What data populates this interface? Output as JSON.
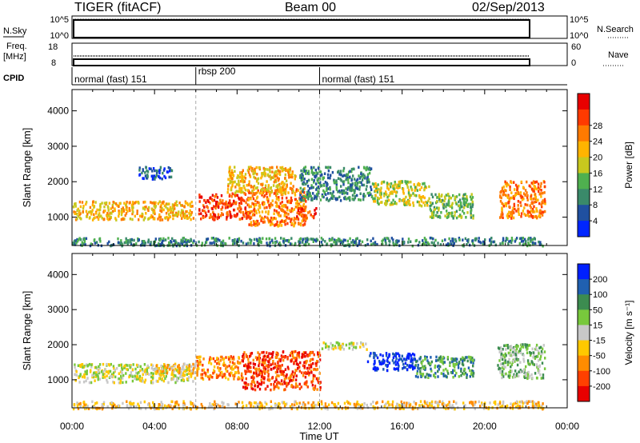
{
  "header": {
    "site": "TIGER (fitACF)",
    "beam": "Beam 00",
    "date": "02/Sep/2013"
  },
  "top_panels": {
    "nsky": {
      "label": "N.Sky",
      "ticks": [
        "10^5",
        "10^0"
      ],
      "right_label": "N.Search",
      "right_ticks": [
        "10^5",
        "10^0"
      ]
    },
    "freq": {
      "label_line1": "Freq.",
      "label_line2": "[MHz]",
      "ticks": [
        "18",
        "8"
      ],
      "right_label": "Nave",
      "right_ticks": [
        "60",
        "0"
      ]
    },
    "cpid": {
      "label": "CPID",
      "segments": [
        {
          "label": "normal (fast) 151",
          "start_h": 0.0,
          "end_h": 6.0
        },
        {
          "label": "rbsp 200",
          "start_h": 6.0,
          "end_h": 12.0
        },
        {
          "label": "normal (fast) 151",
          "start_h": 12.0,
          "end_h": 22.8
        }
      ]
    }
  },
  "chart_data": [
    {
      "type": "heatmap",
      "title": "",
      "xlabel": "Time UT",
      "ylabel": "Slant Range [km]",
      "xlim": [
        0,
        24
      ],
      "ylim": [
        200,
        4600
      ],
      "x_ticks": [
        "00:00",
        "04:00",
        "08:00",
        "12:00",
        "16:00",
        "20:00",
        "00:00"
      ],
      "y_ticks": [
        1000,
        2000,
        3000,
        4000
      ],
      "grid": false,
      "colorbar": {
        "label": "Power [dB]",
        "ticks": [
          4,
          8,
          12,
          16,
          20,
          24,
          28
        ],
        "colors": [
          "#0026ff",
          "#2050a0",
          "#3a8a6a",
          "#4fb04f",
          "#c8c81e",
          "#ffb400",
          "#ff7a00",
          "#ff3a00",
          "#e80000"
        ]
      },
      "regions": [
        {
          "t0": 0.0,
          "t1": 5.9,
          "r0": 950,
          "r1": 1480,
          "level": 5
        },
        {
          "t0": 6.1,
          "t1": 8.5,
          "r0": 950,
          "r1": 1700,
          "level": 7
        },
        {
          "t0": 8.5,
          "t1": 11.3,
          "r0": 780,
          "r1": 1850,
          "level": 6
        },
        {
          "t0": 10.8,
          "t1": 11.8,
          "r0": 1000,
          "r1": 1300,
          "level": 7
        },
        {
          "t0": 7.5,
          "t1": 10.8,
          "r0": 1700,
          "r1": 2450,
          "level": 5
        },
        {
          "t0": 11.0,
          "t1": 14.5,
          "r0": 1500,
          "r1": 2450,
          "level": 2
        },
        {
          "t0": 14.5,
          "t1": 17.3,
          "r0": 1350,
          "r1": 2050,
          "level": 4
        },
        {
          "t0": 17.3,
          "t1": 19.4,
          "r0": 1000,
          "r1": 1700,
          "level": 3
        },
        {
          "t0": 20.7,
          "t1": 22.9,
          "r0": 1000,
          "r1": 2050,
          "level": 6
        },
        {
          "t0": 3.2,
          "t1": 4.8,
          "r0": 2100,
          "r1": 2450,
          "level": 1
        },
        {
          "t0": 0.0,
          "t1": 22.8,
          "r0": 220,
          "r1": 450,
          "level": 2
        }
      ]
    },
    {
      "type": "heatmap",
      "title": "",
      "xlabel": "Time UT",
      "ylabel": "Slant Range [km]",
      "xlim": [
        0,
        24
      ],
      "ylim": [
        200,
        4600
      ],
      "x_ticks": [
        "00:00",
        "04:00",
        "08:00",
        "12:00",
        "16:00",
        "20:00",
        "00:00"
      ],
      "y_ticks": [
        1000,
        2000,
        3000,
        4000
      ],
      "grid": false,
      "colorbar": {
        "label": "Velocity [m s⁻¹]",
        "ticks": [
          200,
          100,
          50,
          15,
          -15,
          -50,
          -100,
          -200
        ],
        "colors": [
          "#0020ff",
          "#2060b0",
          "#3c8c50",
          "#78c83c",
          "#c8c8c8",
          "#ffc800",
          "#ff8c00",
          "#ff4000",
          "#e80000"
        ]
      },
      "regions": [
        {
          "t0": 0.0,
          "t1": 6.0,
          "r0": 950,
          "r1": 1480,
          "level": 4
        },
        {
          "t0": 4.0,
          "t1": 6.0,
          "r0": 1200,
          "r1": 1500,
          "level": 5
        },
        {
          "t0": 6.0,
          "t1": 8.2,
          "r0": 1050,
          "r1": 1700,
          "level": 6
        },
        {
          "t0": 8.2,
          "t1": 12.0,
          "r0": 750,
          "r1": 1850,
          "level": 7
        },
        {
          "t0": 12.0,
          "t1": 14.3,
          "r0": 1900,
          "r1": 2100,
          "level": 4
        },
        {
          "t0": 14.3,
          "t1": 16.6,
          "r0": 1300,
          "r1": 1800,
          "level": 0
        },
        {
          "t0": 16.6,
          "t1": 19.5,
          "r0": 1100,
          "r1": 1700,
          "level": 2
        },
        {
          "t0": 20.6,
          "t1": 22.9,
          "r0": 1050,
          "r1": 2050,
          "level": 3
        },
        {
          "t0": 0.0,
          "t1": 22.8,
          "r0": 200,
          "r1": 420,
          "level": 5
        }
      ]
    }
  ]
}
